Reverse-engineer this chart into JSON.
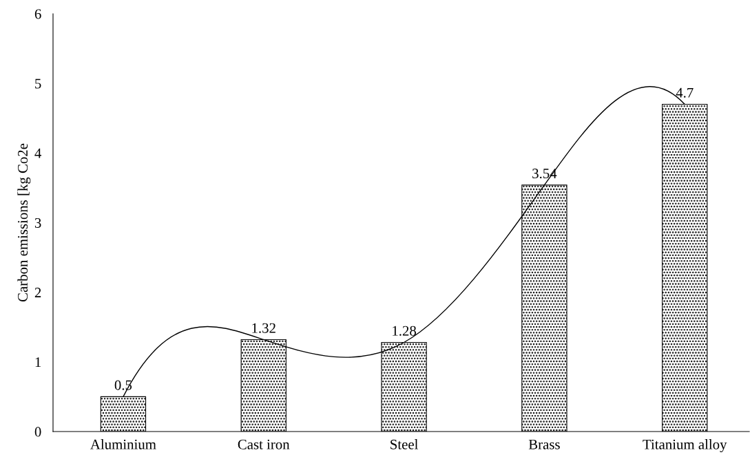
{
  "chart_data": {
    "type": "bar",
    "ylabel": "Carbon emissions [kg Co2e",
    "categories": [
      "Aluminium",
      "Cast iron",
      "Steel",
      "Brass",
      "Titanium alloy"
    ],
    "series": [
      {
        "color": "#000000",
        "values": [
          0.5,
          1.32,
          1.28,
          3.54,
          4.7
        ],
        "value_labels": [
          "0.5",
          "1.32",
          "1.28",
          "3.54",
          "4.7"
        ]
      },
      {
        "type": "line",
        "color": "#000000",
        "values": [
          0.5,
          1.32,
          1.28,
          3.54,
          4.7
        ]
      }
    ],
    "ylim": [
      0,
      6
    ],
    "yticks": [
      0,
      1,
      2,
      3,
      4,
      5,
      6
    ],
    "marker": "none",
    "line_style": "solid"
  }
}
